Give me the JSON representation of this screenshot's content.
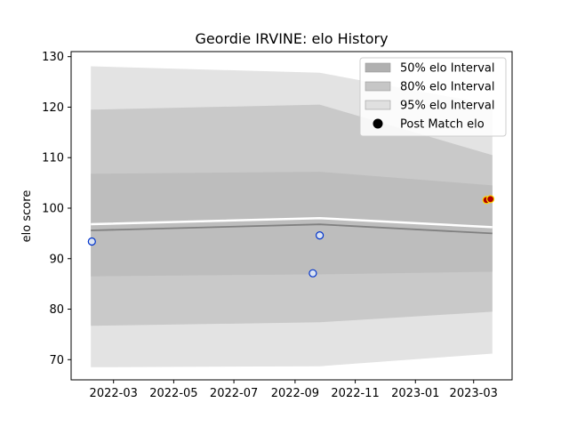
{
  "chart_data": {
    "type": "line",
    "title": "Geordie IRVINE: elo History",
    "xlabel": "",
    "ylabel": "elo score",
    "xlim": [
      "2022-01-17",
      "2023-04-09"
    ],
    "ylim": [
      66,
      131
    ],
    "x_ticks": [
      "2022-03-01",
      "2022-05-01",
      "2022-07-01",
      "2022-09-01",
      "2022-11-01",
      "2023-01-01",
      "2023-03-01"
    ],
    "x_tick_labels": [
      "2022-03",
      "2022-05",
      "2022-07",
      "2022-09",
      "2022-11",
      "2023-01",
      "2023-03"
    ],
    "y_ticks": [
      70,
      80,
      90,
      100,
      110,
      120,
      130
    ],
    "grid": false,
    "legend_position": "top-right",
    "mean_line": {
      "x": [
        "2022-02-06",
        "2022-09-26",
        "2023-03-20"
      ],
      "y": [
        95.6,
        96.8,
        95.0
      ]
    },
    "intervals": [
      {
        "name": "95% elo Interval",
        "x": [
          "2022-02-06",
          "2022-09-26",
          "2023-03-20"
        ],
        "lower": [
          68.5,
          68.7,
          71.2
        ],
        "upper": [
          128.1,
          126.8,
          120.5
        ],
        "color": "#e3e3e3"
      },
      {
        "name": "80% elo Interval",
        "x": [
          "2022-02-06",
          "2022-09-26",
          "2023-03-20"
        ],
        "lower": [
          76.7,
          77.4,
          79.5
        ],
        "upper": [
          119.5,
          120.5,
          110.5
        ],
        "color": "#c9c9c9"
      },
      {
        "name": "50% elo Interval",
        "x": [
          "2022-02-06",
          "2022-09-26",
          "2023-03-20"
        ],
        "lower": [
          86.5,
          86.9,
          87.4
        ],
        "upper": [
          106.8,
          107.2,
          104.5
        ],
        "color": "#bdbdbd"
      }
    ],
    "series": [
      {
        "name": "Post Match elo",
        "points": [
          {
            "x": "2022-02-07",
            "y": 93.4,
            "style": "blue"
          },
          {
            "x": "2022-09-19",
            "y": 87.1,
            "style": "blue"
          },
          {
            "x": "2022-09-26",
            "y": 94.6,
            "style": "blue"
          },
          {
            "x": "2023-03-14",
            "y": 101.6,
            "style": "red"
          },
          {
            "x": "2023-03-18",
            "y": 101.8,
            "style": "red"
          }
        ]
      }
    ],
    "legend": [
      {
        "label": "50% elo Interval",
        "kind": "patch",
        "color": "#b0b0b0"
      },
      {
        "label": "80% elo Interval",
        "kind": "patch",
        "color": "#c6c6c6"
      },
      {
        "label": "95% elo Interval",
        "kind": "patch",
        "color": "#e0e0e0"
      },
      {
        "label": "Post Match elo",
        "kind": "marker",
        "color": "#000000"
      }
    ],
    "colors": {
      "mean_line": "#808080",
      "blue_marker_edge": "#0033cc",
      "blue_marker_fill": "#dbe4f2",
      "red_marker_edge": "#ffd700",
      "red_marker_fill": "#b00000",
      "white_band": "#ffffff"
    }
  }
}
